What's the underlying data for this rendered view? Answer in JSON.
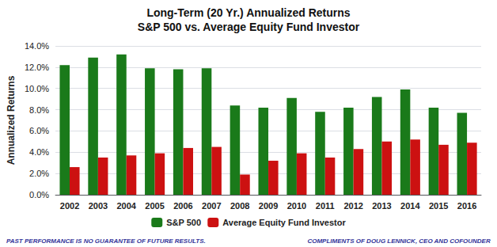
{
  "chart_data": {
    "type": "bar",
    "title": "Long-Term (20 Yr.) Annualized Returns",
    "subtitle": "S&P 500 vs. Average Equity Fund Investor",
    "categories": [
      "2002",
      "2003",
      "2004",
      "2005",
      "2006",
      "2007",
      "2008",
      "2009",
      "2010",
      "2011",
      "2012",
      "2013",
      "2014",
      "2015",
      "2016"
    ],
    "series": [
      {
        "name": "S&P 500",
        "color": "#1a7a1a",
        "values": [
          12.2,
          12.9,
          13.2,
          11.9,
          11.8,
          11.9,
          8.4,
          8.2,
          9.1,
          7.8,
          8.2,
          9.2,
          9.9,
          8.2,
          7.7
        ]
      },
      {
        "name": "Average Equity Fund Investor",
        "color": "#cc1111",
        "values": [
          2.6,
          3.5,
          3.7,
          3.9,
          4.4,
          4.5,
          1.9,
          3.2,
          3.9,
          3.5,
          4.3,
          5.0,
          5.2,
          4.7,
          4.9
        ]
      }
    ],
    "y_label": "Annualized Returns",
    "ylim": [
      0,
      14.0
    ],
    "yticks": [
      {
        "value": 0.0,
        "label": "0.0%"
      },
      {
        "value": 2.0,
        "label": "2.0%"
      },
      {
        "value": 4.0,
        "label": "4.0%"
      },
      {
        "value": 6.0,
        "label": "6.0%"
      },
      {
        "value": 8.0,
        "label": "8.0%"
      },
      {
        "value": 10.0,
        "label": "10.0%"
      },
      {
        "value": 12.0,
        "label": "12.0%"
      },
      {
        "value": 14.0,
        "label": "14.0%"
      }
    ],
    "grid": true,
    "legend": "bottom",
    "annotations": [
      "PAST PERFORMANCE IS NO GUARANTEE OF FUTURE RESULTS.",
      "COMPLIMENTS OF DOUG LENNICK, CEO AND COFOUNDER"
    ]
  }
}
